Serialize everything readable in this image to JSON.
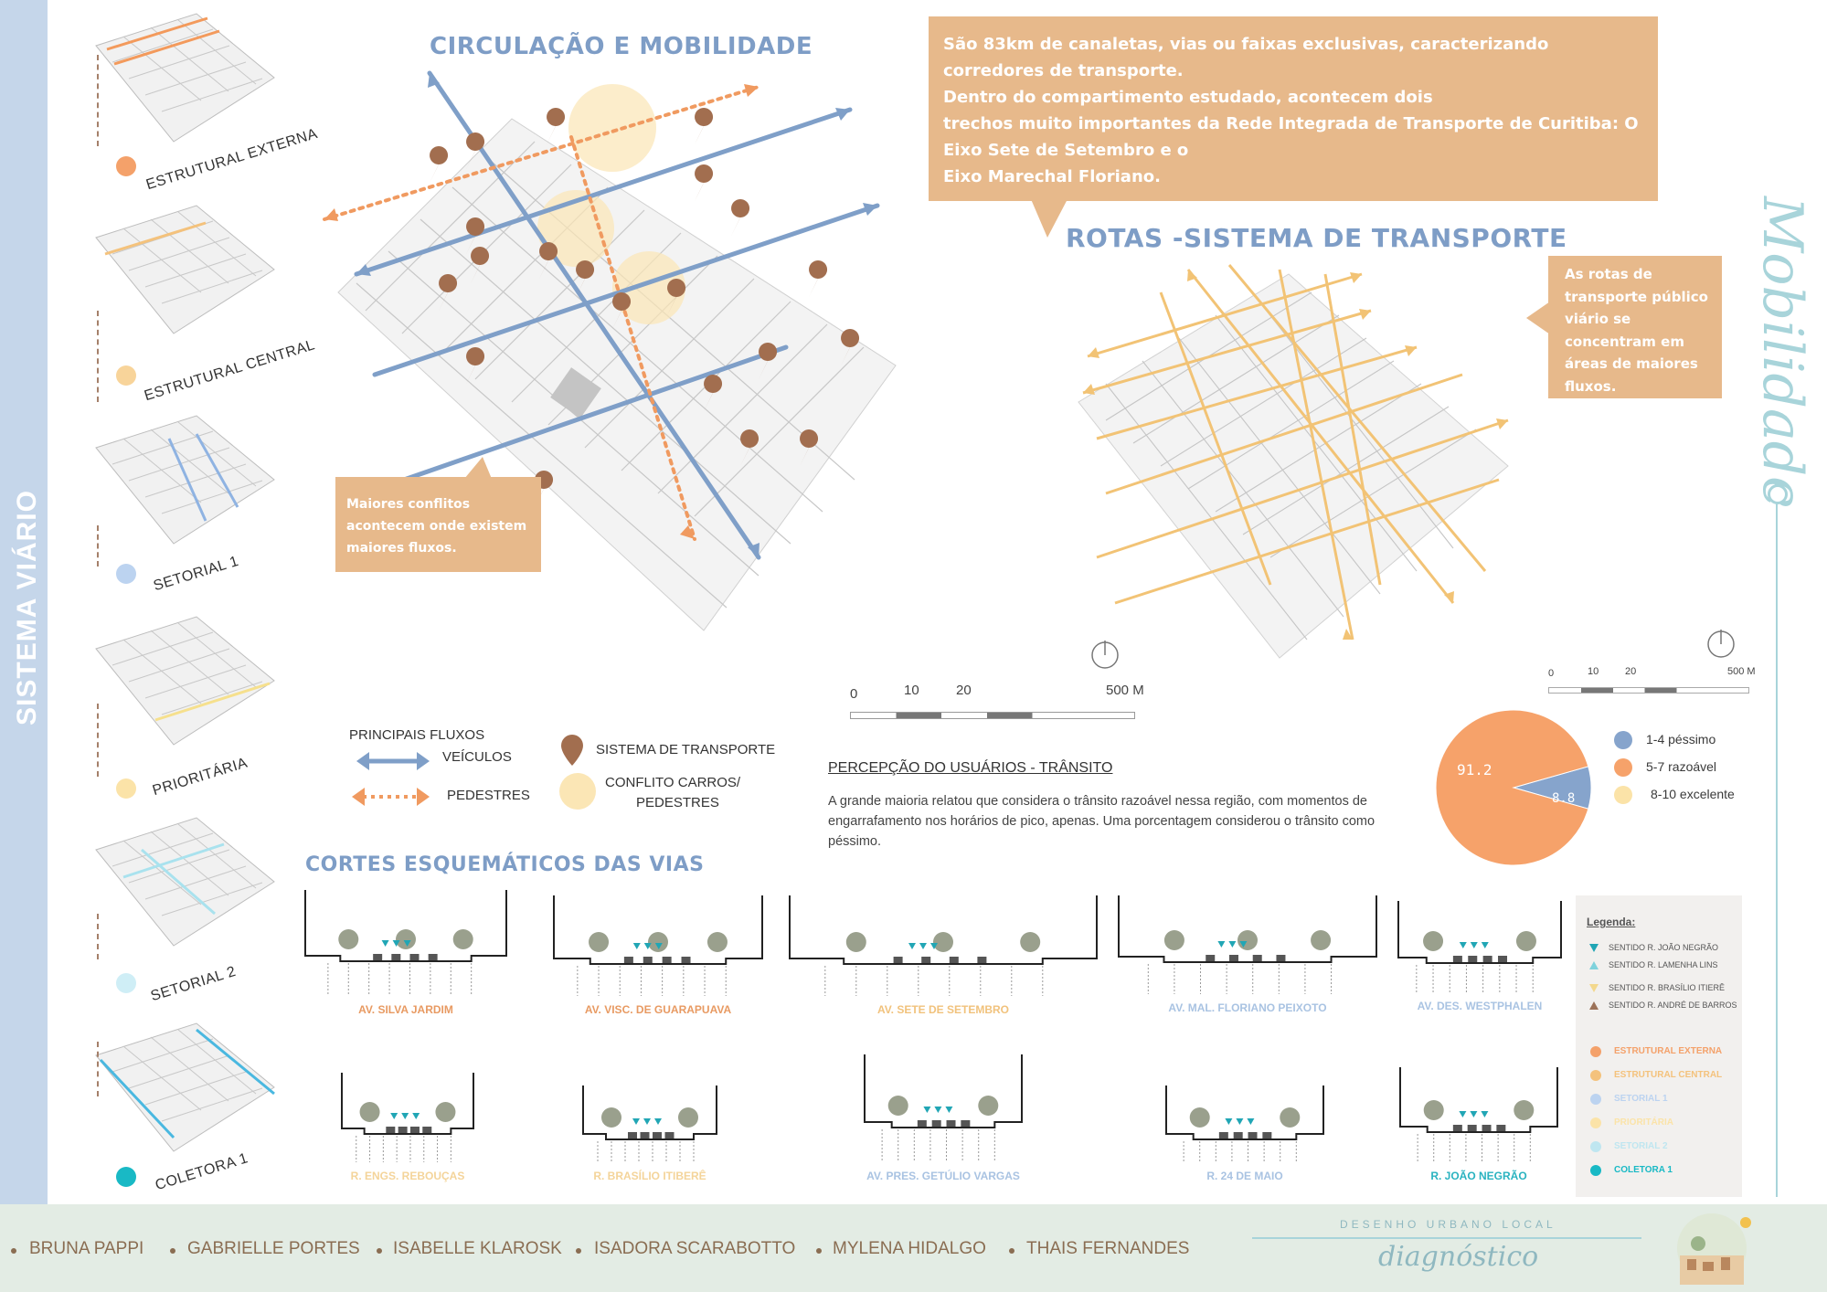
{
  "sidebar": {
    "title": "SISTEMA VIÁRIO",
    "categories": [
      {
        "label": "ESTRUTURAL EXTERNA",
        "color": "#f4a16a"
      },
      {
        "label": "ESTRUTURAL CENTRAL",
        "color": "#f8d49a"
      },
      {
        "label": "SETORIAL 1",
        "color": "#bcd3f0"
      },
      {
        "label": "PRIORITÁRIA",
        "color": "#fbe3a8"
      },
      {
        "label": "SETORIAL 2",
        "color": "#cfeef6"
      },
      {
        "label": "COLETORA 1",
        "color": "#19b9c5"
      }
    ]
  },
  "circulation": {
    "title": "CIRCULAÇÃO E MOBILIDADE",
    "conflict_callout": "Maiores conflitos acontecem onde existem maiores fluxos."
  },
  "top_callout": {
    "lines": [
      "São 83km de canaletas, vias ou faixas exclusivas, caracterizando corredores de transporte.",
      "Dentro do compartimento estudado, acontecem dois",
      "trechos muito importantes da Rede Integrada de Transporte de Curitiba: O Eixo Sete de Setembro e o",
      "Eixo Marechal Floriano."
    ]
  },
  "routes": {
    "title": "ROTAS -SISTEMA DE TRANSPORTE",
    "callout": "As rotas de transporte público viário se concentram em áreas de maiores fluxos."
  },
  "script_text": "Mobilidade",
  "flow_legend": {
    "heading": "PRINCIPAIS FLUXOS",
    "vehicles": "VEÍCULOS",
    "pedestrians": "PEDESTRES",
    "transport": "SISTEMA DE TRANSPORTE",
    "conflict_line1": "CONFLITO CARROS/",
    "conflict_line2": "PEDESTRES"
  },
  "scale_left": {
    "labels": [
      "0",
      "10",
      "20",
      "500 M"
    ]
  },
  "scale_right": {
    "labels": [
      "0",
      "10",
      "20",
      "500 M"
    ]
  },
  "perception": {
    "title": "PERCEPÇÃO DO USUÁRIOS - TRÂNSITO",
    "text": "A grande maioria relatou que considera o trânsito razoável nessa região, com momentos de engarrafamento nos horários de pico, apenas. Uma porcentagem considerou o trânsito como péssimo."
  },
  "chart_data": {
    "type": "pie",
    "title": "",
    "slices": [
      {
        "label": "1-4 péssimo",
        "value": 8.8,
        "color": "#86a4cc"
      },
      {
        "label": "5-7 razoável",
        "value": 91.2,
        "color": "#f6a26a"
      },
      {
        "label": "8-10 excelente",
        "value": 0,
        "color": "#fbe3a8"
      }
    ],
    "data_labels": [
      "91.2",
      "8.8"
    ],
    "legend_position": "right"
  },
  "sections": {
    "title": "CORTES ESQUEMÁTICOS DAS VIAS",
    "top": [
      {
        "name": "AV. SILVA JARDIM",
        "color": "#e89a62"
      },
      {
        "name": "AV. VISC. DE GUARAPUAVA",
        "color": "#e89a62"
      },
      {
        "name": "AV. SETE DE SETEMBRO",
        "color": "#f1c27c"
      },
      {
        "name": "AV. MAL. FLORIANO PEIXOTO",
        "color": "#a9c3e2"
      },
      {
        "name": "AV. DES. WESTPHALEN",
        "color": "#a9c3e2"
      }
    ],
    "bottom": [
      {
        "name": "R. ENGS. REBOUÇAS",
        "color": "#f4d49a"
      },
      {
        "name": "R. BRASÍLIO ITIBERÊ",
        "color": "#f4d49a"
      },
      {
        "name": "AV. PRES. GETÚLIO VARGAS",
        "color": "#a9c3e2"
      },
      {
        "name": "R. 24 DE MAIO",
        "color": "#a9c3e2"
      },
      {
        "name": "R. JOÃO NEGRÃO",
        "color": "#2ab3c0"
      }
    ]
  },
  "legend_box": {
    "title": "Legenda:",
    "markers": [
      {
        "label": "SENTIDO R. JOÃO NEGRÃO",
        "color": "#21a6b5",
        "shape": "triangle-down"
      },
      {
        "label": "SENTIDO R. LAMENHA LINS",
        "color": "#7fd2dc",
        "shape": "triangle-up"
      },
      {
        "label": "SENTIDO R. BRASÍLIO ITIERÊ",
        "color": "#f3d88d",
        "shape": "triangle-down"
      },
      {
        "label": "SENTIDO R. ANDRÉ DE BARROS",
        "color": "#9c7258",
        "shape": "triangle-up"
      }
    ],
    "categories": [
      {
        "label": "ESTRUTURAL EXTERNA",
        "color": "#f4a16a"
      },
      {
        "label": "ESTRUTURAL CENTRAL",
        "color": "#f4c27c"
      },
      {
        "label": "SETORIAL 1",
        "color": "#bcd3f0"
      },
      {
        "label": "PRIORITÁRIA",
        "color": "#fbe3a8"
      },
      {
        "label": "SETORIAL 2",
        "color": "#bfe6f0"
      },
      {
        "label": "COLETORA 1",
        "color": "#19b9c5"
      }
    ]
  },
  "footer": {
    "authors": [
      "BRUNA PAPPI",
      "GABRIELLE PORTES",
      "ISABELLE KLAROSK",
      "ISADORA SCARABOTTO",
      "MYLENA HIDALGO",
      "THAIS FERNANDES"
    ],
    "course": "DESENHO URBANO LOCAL",
    "subtitle": "diagnóstico"
  }
}
